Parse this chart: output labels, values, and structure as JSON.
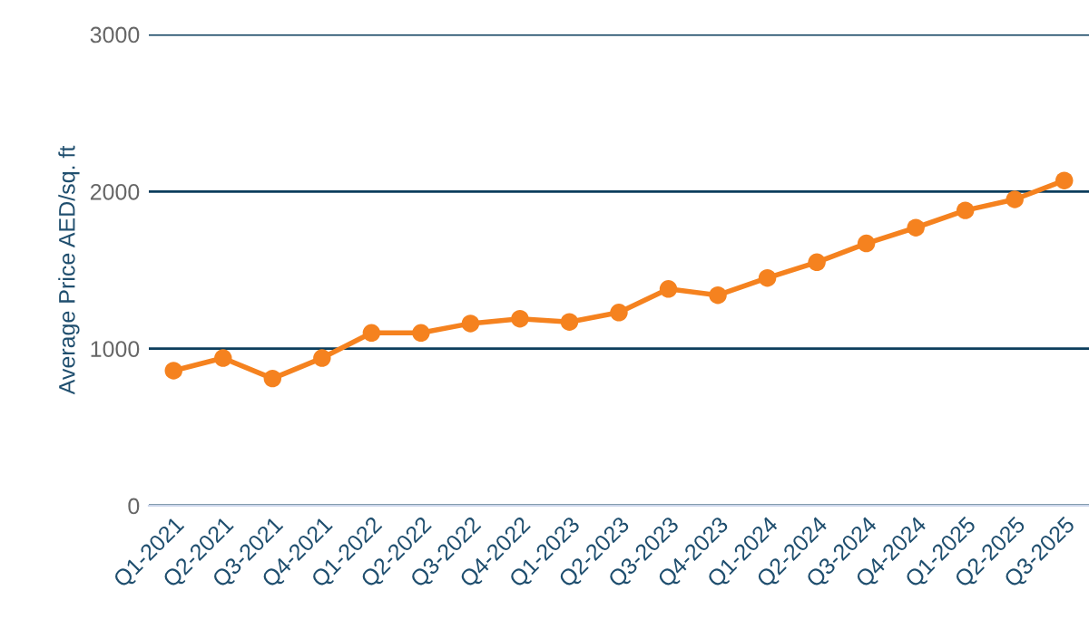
{
  "chart_data": {
    "type": "line",
    "ylabel": "Average Price AED/sq. ft",
    "categories": [
      "Q1-2021",
      "Q2-2021",
      "Q3-2021",
      "Q4-2021",
      "Q1-2022",
      "Q2-2022",
      "Q3-2022",
      "Q4-2022",
      "Q1-2023",
      "Q2-2023",
      "Q3-2023",
      "Q4-2023",
      "Q1-2024",
      "Q2-2024",
      "Q3-2024",
      "Q4-2024",
      "Q1-2025",
      "Q2-2025",
      "Q3-2025"
    ],
    "series": [
      {
        "color": "#f5821f",
        "values": [
          860,
          940,
          810,
          940,
          1100,
          1100,
          1160,
          1190,
          1170,
          1230,
          1380,
          1340,
          1450,
          1550,
          1670,
          1770,
          1880,
          1950,
          2070
        ]
      }
    ],
    "ylim": [
      0,
      3000
    ],
    "yticks": [
      0,
      1000,
      2000,
      3000
    ],
    "grid": "y",
    "marker": "circle",
    "line_style": "solid"
  }
}
